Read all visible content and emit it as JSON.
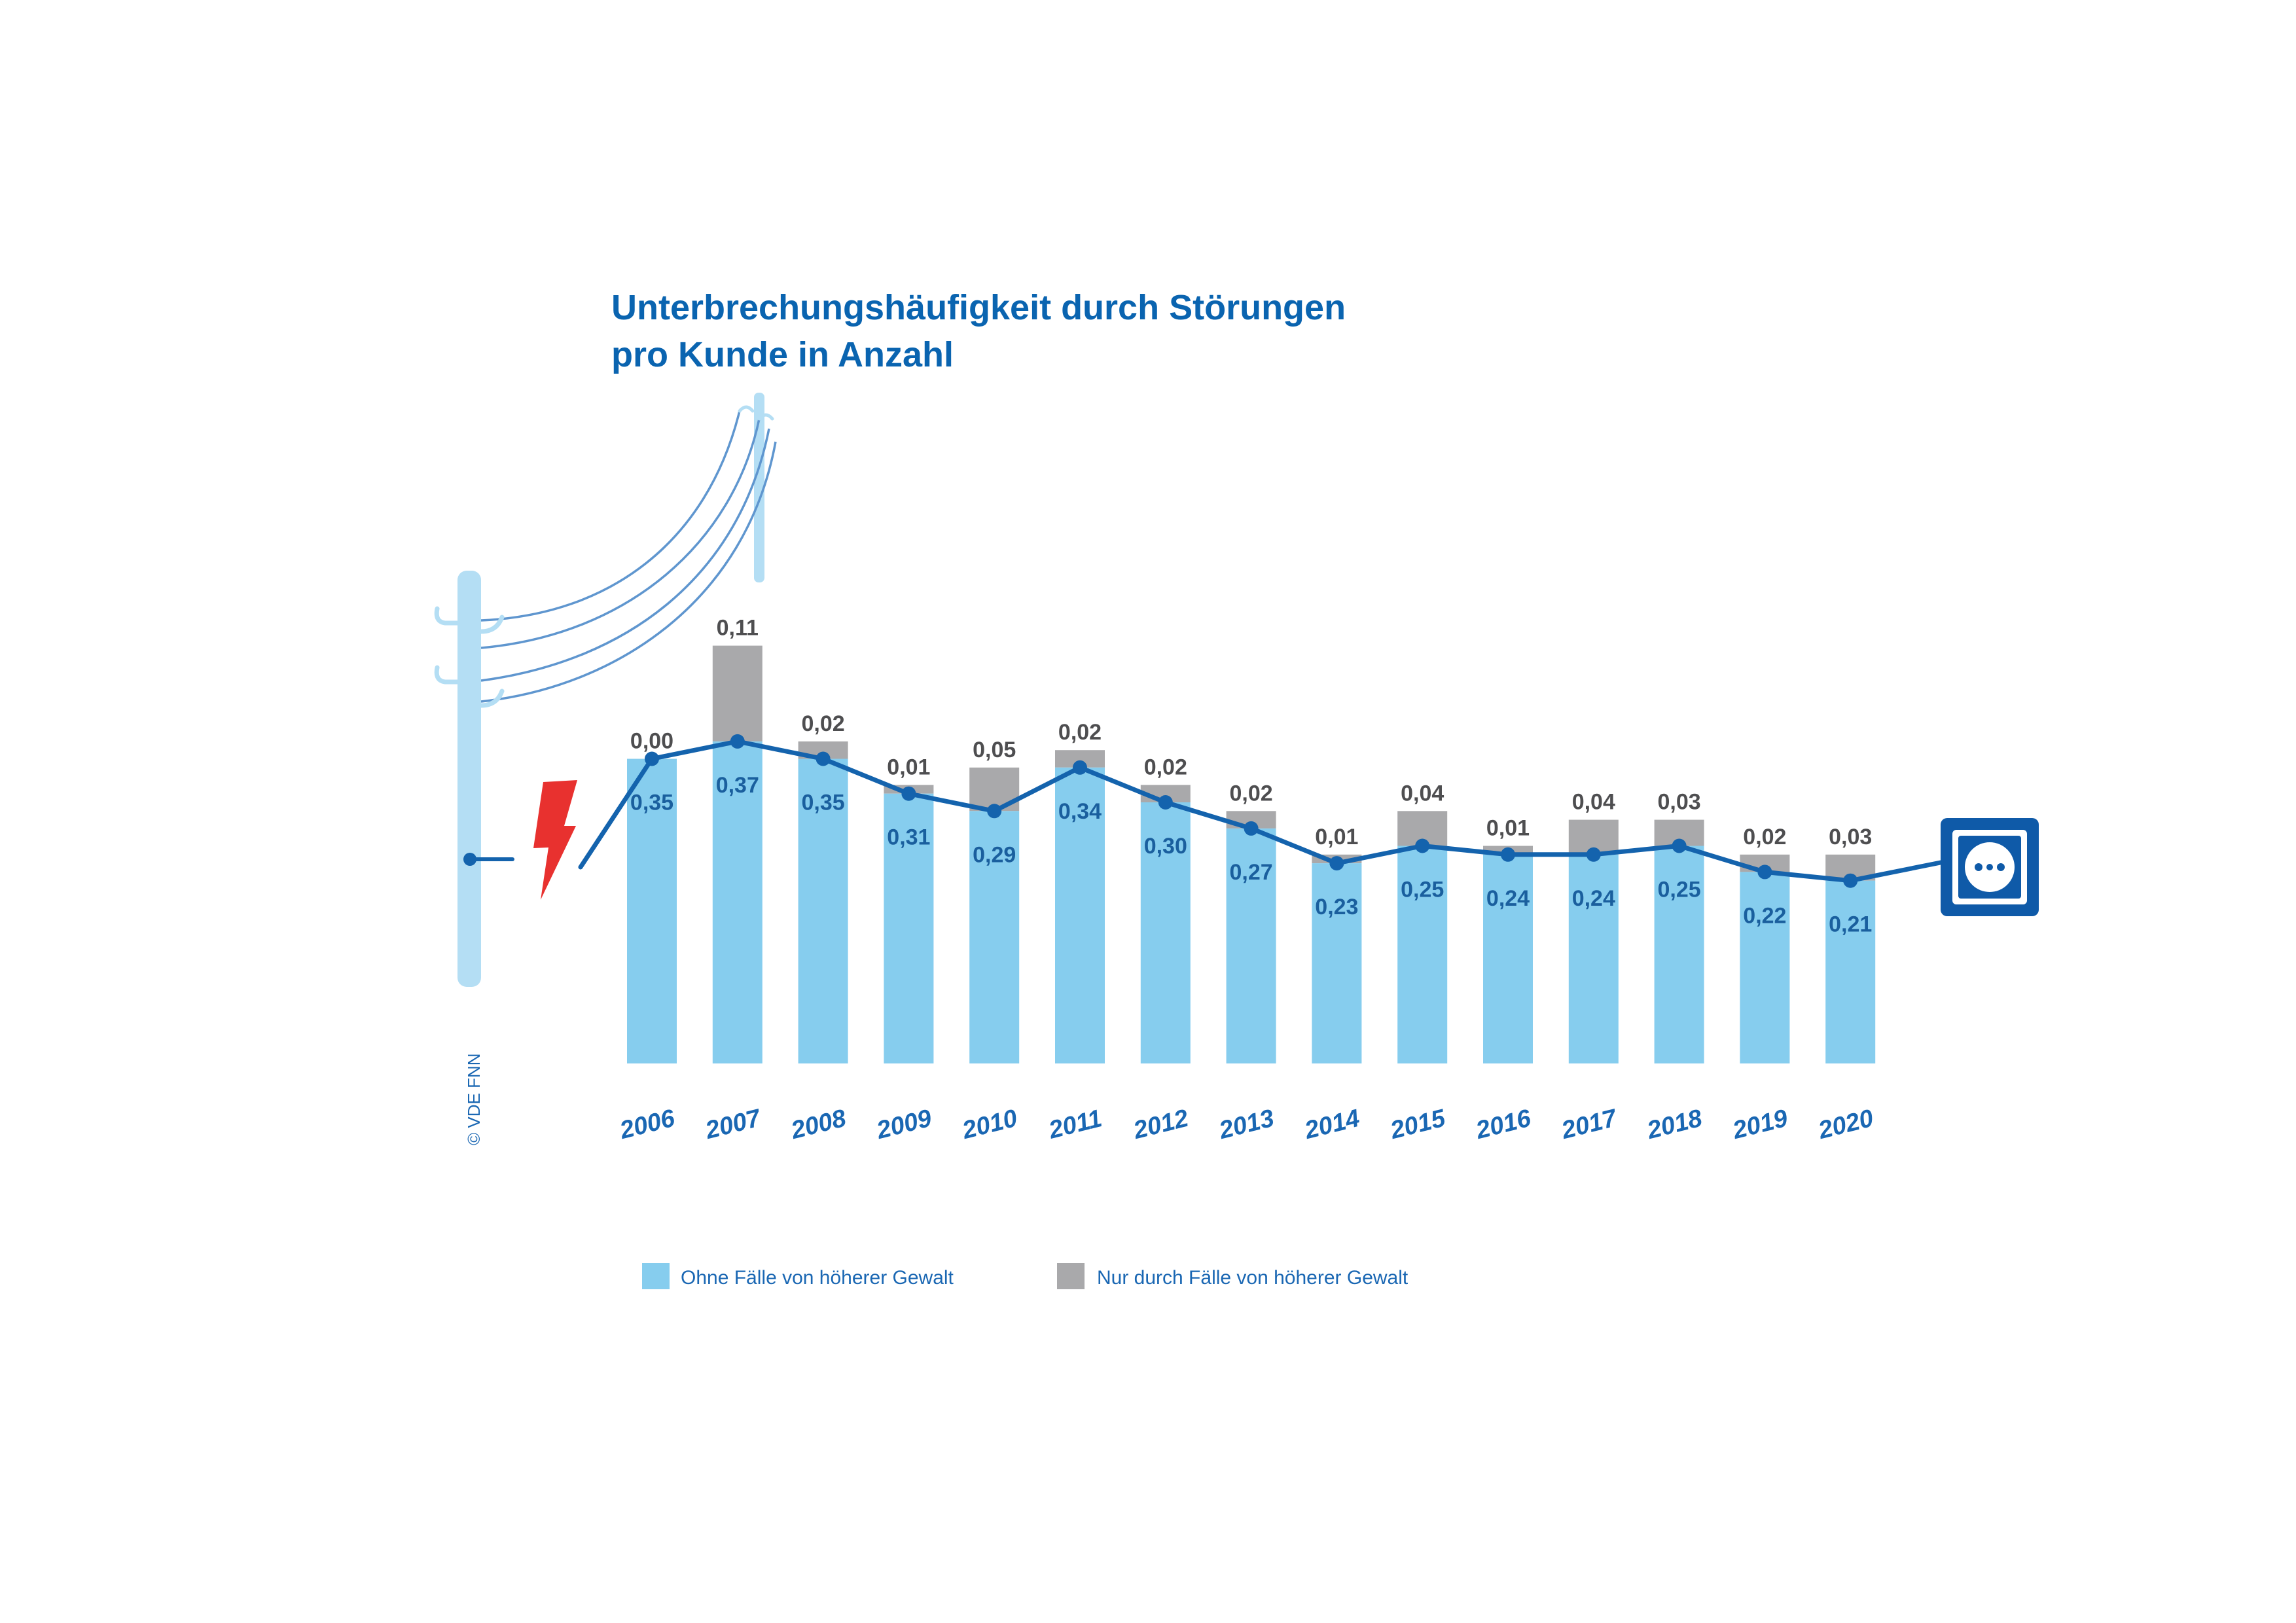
{
  "copyright": "© VDE FNN",
  "colors": {
    "title": "#0a64b0",
    "bar_base": "#86cdee",
    "bar_force": "#a9a9ab",
    "line": "#1463ad",
    "pole": "#b4def4",
    "wire": "#5f96cf",
    "lightning": "#e8312f",
    "socket": "#0f5aa8"
  },
  "icons": {
    "pole": "power-pole-icon",
    "lightning": "lightning-bolt-icon",
    "socket": "power-socket-icon"
  },
  "chart_data": {
    "type": "bar",
    "stacked": true,
    "title": "Unterbrechungshäufigkeit durch Störungen\npro Kunde in Anzahl",
    "categories": [
      "2006",
      "2007",
      "2008",
      "2009",
      "2010",
      "2011",
      "2012",
      "2013",
      "2014",
      "2015",
      "2016",
      "2017",
      "2018",
      "2019",
      "2020"
    ],
    "series": [
      {
        "name": "Ohne Fälle von höherer Gewalt",
        "values": [
          0.35,
          0.37,
          0.35,
          0.31,
          0.29,
          0.34,
          0.3,
          0.27,
          0.23,
          0.25,
          0.24,
          0.24,
          0.25,
          0.22,
          0.21
        ],
        "labels": [
          "0,35",
          "0,37",
          "0,35",
          "0,31",
          "0,29",
          "0,34",
          "0,30",
          "0,27",
          "0,23",
          "0,25",
          "0,24",
          "0,24",
          "0,25",
          "0,22",
          "0,21"
        ],
        "line_overlay": true
      },
      {
        "name": "Nur durch Fälle von höherer Gewalt",
        "values": [
          0.0,
          0.11,
          0.02,
          0.01,
          0.05,
          0.02,
          0.02,
          0.02,
          0.01,
          0.04,
          0.01,
          0.04,
          0.03,
          0.02,
          0.03
        ],
        "labels": [
          "0,00",
          "0,11",
          "0,02",
          "0,01",
          "0,05",
          "0,02",
          "0,02",
          "0,02",
          "0,01",
          "0,04",
          "0,01",
          "0,04",
          "0,03",
          "0,02",
          "0,03"
        ]
      }
    ],
    "ylim": [
      0,
      0.48
    ],
    "grid": false,
    "legend_position": "bottom"
  }
}
